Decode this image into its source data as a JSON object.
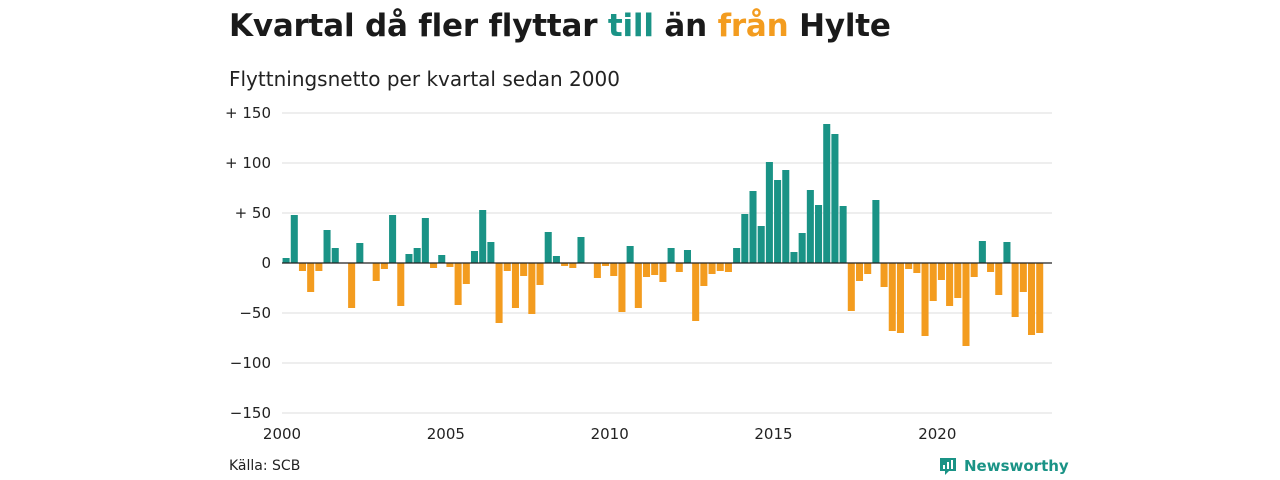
{
  "header": {
    "title_parts": [
      "Kvartal då fler flyttar ",
      "till",
      " än ",
      "från",
      " Hylte"
    ],
    "subtitle": "Flyttningsnetto per kvartal sedan 2000"
  },
  "footer": {
    "source": "Källa: SCB",
    "brand": "Newsworthy",
    "brand_icon": "newsworthy-logo-icon"
  },
  "colors": {
    "positive": "#1a9386",
    "negative": "#f39c1f",
    "grid": "#dddddd",
    "axis": "#222222"
  },
  "chart_data": {
    "type": "bar",
    "title": "Kvartal då fler flyttar till än från Hylte",
    "subtitle": "Flyttningsnetto per kvartal sedan 2000",
    "xlabel": "",
    "ylabel": "",
    "x_ticks": [
      "2000",
      "2005",
      "2010",
      "2015",
      "2020"
    ],
    "y_ticks": [
      150,
      100,
      50,
      0,
      -50,
      -100,
      -150
    ],
    "y_tick_labels": [
      "+ 150",
      "+ 100",
      "+  50",
      "0",
      "−50",
      "−100",
      "−150"
    ],
    "ylim": [
      -150,
      150
    ],
    "xlim": [
      "2000 Q1",
      "2023 Q2"
    ],
    "grid": true,
    "categories": [
      "2000 Q1",
      "2000 Q2",
      "2000 Q3",
      "2000 Q4",
      "2001 Q1",
      "2001 Q2",
      "2001 Q3",
      "2001 Q4",
      "2002 Q1",
      "2002 Q2",
      "2002 Q3",
      "2002 Q4",
      "2003 Q1",
      "2003 Q2",
      "2003 Q3",
      "2003 Q4",
      "2004 Q1",
      "2004 Q2",
      "2004 Q3",
      "2004 Q4",
      "2005 Q1",
      "2005 Q2",
      "2005 Q3",
      "2005 Q4",
      "2006 Q1",
      "2006 Q2",
      "2006 Q3",
      "2006 Q4",
      "2007 Q1",
      "2007 Q2",
      "2007 Q3",
      "2007 Q4",
      "2008 Q1",
      "2008 Q2",
      "2008 Q3",
      "2008 Q4",
      "2009 Q1",
      "2009 Q2",
      "2009 Q3",
      "2009 Q4",
      "2010 Q1",
      "2010 Q2",
      "2010 Q3",
      "2010 Q4",
      "2011 Q1",
      "2011 Q2",
      "2011 Q3",
      "2011 Q4",
      "2012 Q1",
      "2012 Q2",
      "2012 Q3",
      "2012 Q4",
      "2013 Q1",
      "2013 Q2",
      "2013 Q3",
      "2013 Q4",
      "2014 Q1",
      "2014 Q2",
      "2014 Q3",
      "2014 Q4",
      "2015 Q1",
      "2015 Q2",
      "2015 Q3",
      "2015 Q4",
      "2016 Q1",
      "2016 Q2",
      "2016 Q3",
      "2016 Q4",
      "2017 Q1",
      "2017 Q2",
      "2017 Q3",
      "2017 Q4",
      "2018 Q1",
      "2018 Q2",
      "2018 Q3",
      "2018 Q4",
      "2019 Q1",
      "2019 Q2",
      "2019 Q3",
      "2019 Q4",
      "2020 Q1",
      "2020 Q2",
      "2020 Q3",
      "2020 Q4",
      "2021 Q1",
      "2021 Q2",
      "2021 Q3",
      "2021 Q4",
      "2022 Q1",
      "2022 Q2",
      "2022 Q3",
      "2022 Q4",
      "2023 Q1",
      "2023 Q2"
    ],
    "values": [
      5,
      48,
      -8,
      -29,
      -8,
      33,
      15,
      0,
      -45,
      20,
      0,
      -18,
      -6,
      48,
      -43,
      9,
      15,
      45,
      -5,
      8,
      -4,
      -42,
      -21,
      12,
      53,
      21,
      -60,
      -8,
      -45,
      -13,
      -51,
      -22,
      31,
      7,
      -3,
      -5,
      26,
      0,
      -15,
      -3,
      -13,
      -49,
      17,
      -45,
      -14,
      -12,
      -19,
      15,
      -9,
      13,
      -58,
      -23,
      -11,
      -8,
      -9,
      15,
      49,
      72,
      37,
      101,
      83,
      93,
      11,
      30,
      73,
      58,
      139,
      129,
      57,
      -48,
      -18,
      -11,
      63,
      -24,
      -68,
      -70,
      -6,
      -10,
      -73,
      -38,
      -17,
      -43,
      -35,
      -83,
      -14,
      22,
      -9,
      -32,
      21,
      -54,
      -29,
      -72,
      -70,
      0
    ]
  }
}
